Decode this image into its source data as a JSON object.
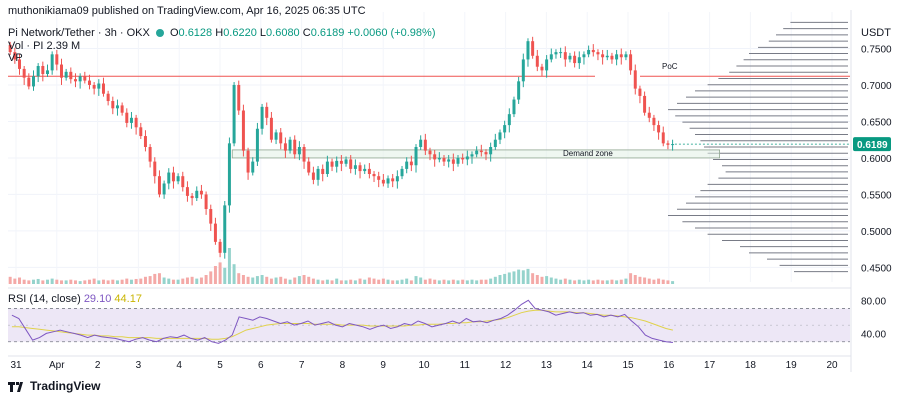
{
  "header": {
    "published": "muthonikiama09 published on TradingView.com, Apr 16, 2025 06:35 UTC",
    "symbol": "Pi Network/Tether · 3h · OKX",
    "ohlc": {
      "open_label": "O",
      "open": "0.6128",
      "high_label": "H",
      "high": "0.6220",
      "low_label": "L",
      "low": "0.6080",
      "close_label": "C",
      "close": "0.6189",
      "change": "+0.0060 (+0.98%)"
    },
    "volume": "Vol · PI",
    "volume_value": "2.39 M",
    "vp_label": "VP",
    "currency": "USDT"
  },
  "colors": {
    "up": "#26a69a",
    "down": "#ef5350",
    "up_volume": "#95d3cc",
    "down_volume": "#f4a9a7",
    "resistance_line": "#ef5350",
    "price_badge": "#089981",
    "rsi_line": "#7e57c2",
    "rsi_ma": "#e0d24a",
    "rsi_band": "#ede7f6",
    "volume_profile": "#787b86"
  },
  "chart_data": {
    "type": "candlestick",
    "timeframe": "3h",
    "x_tick_labels": [
      "31",
      "Apr",
      "2",
      "3",
      "4",
      "5",
      "6",
      "7",
      "8",
      "9",
      "10",
      "11",
      "12",
      "13",
      "14",
      "15",
      "16",
      "17",
      "18",
      "19",
      "20"
    ],
    "y_tick_labels": [
      "0.7500",
      "0.7000",
      "0.6500",
      "0.6000",
      "0.5500",
      "0.5000",
      "0.4500"
    ],
    "ylim": [
      0.43,
      0.8
    ],
    "last_price": "0.6189",
    "resistance_level": 0.712,
    "annotations": {
      "demand_zone": {
        "label": "Demand zone",
        "low": 0.6,
        "high": 0.611,
        "from_day": 5.3,
        "to_day": 17.0
      },
      "poc": {
        "label": "PoC",
        "price": 0.712
      }
    },
    "candles_close_by_3h": [
      0.745,
      0.735,
      0.722,
      0.71,
      0.698,
      0.712,
      0.726,
      0.715,
      0.72,
      0.742,
      0.728,
      0.71,
      0.718,
      0.708,
      0.705,
      0.712,
      0.706,
      0.7,
      0.695,
      0.702,
      0.688,
      0.678,
      0.668,
      0.672,
      0.662,
      0.648,
      0.655,
      0.642,
      0.63,
      0.615,
      0.595,
      0.575,
      0.55,
      0.565,
      0.58,
      0.568,
      0.575,
      0.56,
      0.548,
      0.545,
      0.555,
      0.55,
      0.53,
      0.51,
      0.485,
      0.47,
      0.535,
      0.62,
      0.7,
      0.665,
      0.61,
      0.58,
      0.595,
      0.64,
      0.67,
      0.655,
      0.625,
      0.635,
      0.62,
      0.61,
      0.625,
      0.605,
      0.615,
      0.595,
      0.58,
      0.57,
      0.585,
      0.578,
      0.595,
      0.588,
      0.596,
      0.592,
      0.598,
      0.585,
      0.59,
      0.582,
      0.585,
      0.578,
      0.575,
      0.57,
      0.565,
      0.572,
      0.568,
      0.575,
      0.585,
      0.595,
      0.59,
      0.615,
      0.625,
      0.61,
      0.605,
      0.598,
      0.6,
      0.595,
      0.598,
      0.592,
      0.6,
      0.598,
      0.602,
      0.605,
      0.61,
      0.608,
      0.605,
      0.615,
      0.625,
      0.635,
      0.645,
      0.66,
      0.68,
      0.705,
      0.735,
      0.76,
      0.74,
      0.725,
      0.72,
      0.735,
      0.742,
      0.745,
      0.745,
      0.735,
      0.74,
      0.73,
      0.738,
      0.742,
      0.748,
      0.745,
      0.742,
      0.738,
      0.74,
      0.735,
      0.742,
      0.738,
      0.742,
      0.72,
      0.695,
      0.685,
      0.662,
      0.655,
      0.645,
      0.635,
      0.62,
      0.618,
      0.619
    ],
    "volume_relative": [
      0.2,
      0.15,
      0.18,
      0.12,
      0.1,
      0.12,
      0.14,
      0.1,
      0.12,
      0.15,
      0.12,
      0.1,
      0.1,
      0.12,
      0.1,
      0.08,
      0.1,
      0.12,
      0.15,
      0.1,
      0.12,
      0.1,
      0.12,
      0.1,
      0.12,
      0.15,
      0.12,
      0.14,
      0.15,
      0.2,
      0.22,
      0.28,
      0.3,
      0.18,
      0.15,
      0.12,
      0.12,
      0.15,
      0.18,
      0.2,
      0.15,
      0.18,
      0.25,
      0.35,
      0.5,
      0.6,
      0.45,
      1.0,
      0.55,
      0.3,
      0.25,
      0.2,
      0.18,
      0.22,
      0.25,
      0.2,
      0.15,
      0.18,
      0.2,
      0.15,
      0.12,
      0.18,
      0.22,
      0.25,
      0.2,
      0.15,
      0.12,
      0.1,
      0.12,
      0.1,
      0.15,
      0.1,
      0.1,
      0.12,
      0.1,
      0.15,
      0.12,
      0.18,
      0.15,
      0.12,
      0.15,
      0.12,
      0.1,
      0.1,
      0.12,
      0.15,
      0.1,
      0.22,
      0.18,
      0.12,
      0.15,
      0.12,
      0.1,
      0.12,
      0.1,
      0.12,
      0.1,
      0.12,
      0.1,
      0.12,
      0.1,
      0.12,
      0.12,
      0.15,
      0.2,
      0.25,
      0.28,
      0.32,
      0.35,
      0.4,
      0.38,
      0.42,
      0.3,
      0.25,
      0.2,
      0.22,
      0.18,
      0.15,
      0.12,
      0.15,
      0.12,
      0.1,
      0.12,
      0.1,
      0.12,
      0.1,
      0.12,
      0.1,
      0.1,
      0.12,
      0.1,
      0.12,
      0.15,
      0.3,
      0.25,
      0.2,
      0.18,
      0.15,
      0.12,
      0.15,
      0.12,
      0.1,
      0.08
    ],
    "volume_profile_relative": [
      0.32,
      0.36,
      0.4,
      0.44,
      0.5,
      0.55,
      0.58,
      0.62,
      0.66,
      0.72,
      0.78,
      0.85,
      0.9,
      0.95,
      1.0,
      0.96,
      0.92,
      0.88,
      0.85,
      0.82,
      0.8,
      0.78,
      0.75,
      0.7,
      0.68,
      0.72,
      0.78,
      0.82,
      0.85,
      0.9,
      0.95,
      1.0,
      0.92,
      0.85,
      0.78,
      0.7,
      0.6,
      0.55,
      0.45,
      0.38,
      0.3
    ],
    "rsi": {
      "label": "RSI (14, close)",
      "value": "29.10",
      "ma_value": "44.17",
      "tick_labels": [
        "80.00",
        "40.00"
      ],
      "upper_band": 70,
      "lower_band": 30,
      "values": [
        62,
        58,
        45,
        32,
        35,
        40,
        42,
        44,
        42,
        40,
        38,
        35,
        38,
        36,
        35,
        34,
        32,
        30,
        33,
        35,
        32,
        30,
        34,
        36,
        35,
        38,
        34,
        32,
        35,
        30,
        28,
        32,
        38,
        60,
        58,
        56,
        60,
        58,
        55,
        52,
        54,
        50,
        52,
        55,
        50,
        52,
        54,
        50,
        48,
        52,
        50,
        48,
        45,
        48,
        50,
        46,
        48,
        52,
        50,
        55,
        52,
        48,
        50,
        52,
        55,
        52,
        58,
        54,
        55,
        53,
        56,
        58,
        62,
        68,
        75,
        80,
        70,
        68,
        66,
        62,
        64,
        66,
        64,
        65,
        62,
        63,
        60,
        62,
        60,
        63,
        55,
        48,
        38,
        34,
        32,
        30,
        29
      ],
      "ma_values": [
        48,
        48,
        47,
        46,
        45,
        44,
        43,
        42,
        41,
        40,
        39,
        38,
        38,
        37,
        37,
        36,
        36,
        35,
        35,
        35,
        35,
        34,
        34,
        34,
        34,
        34,
        34,
        34,
        34,
        33,
        33,
        34,
        36,
        40,
        44,
        46,
        48,
        50,
        51,
        52,
        52,
        52,
        52,
        52,
        51,
        51,
        51,
        51,
        50,
        50,
        50,
        50,
        49,
        49,
        49,
        49,
        49,
        49,
        50,
        50,
        51,
        51,
        51,
        52,
        52,
        53,
        53,
        54,
        54,
        55,
        56,
        57,
        59,
        62,
        65,
        67,
        68,
        68,
        67,
        66,
        66,
        66,
        65,
        65,
        64,
        63,
        62,
        62,
        61,
        60,
        59,
        57,
        55,
        52,
        49,
        46,
        44
      ]
    }
  },
  "footer": {
    "brand": "TradingView"
  }
}
